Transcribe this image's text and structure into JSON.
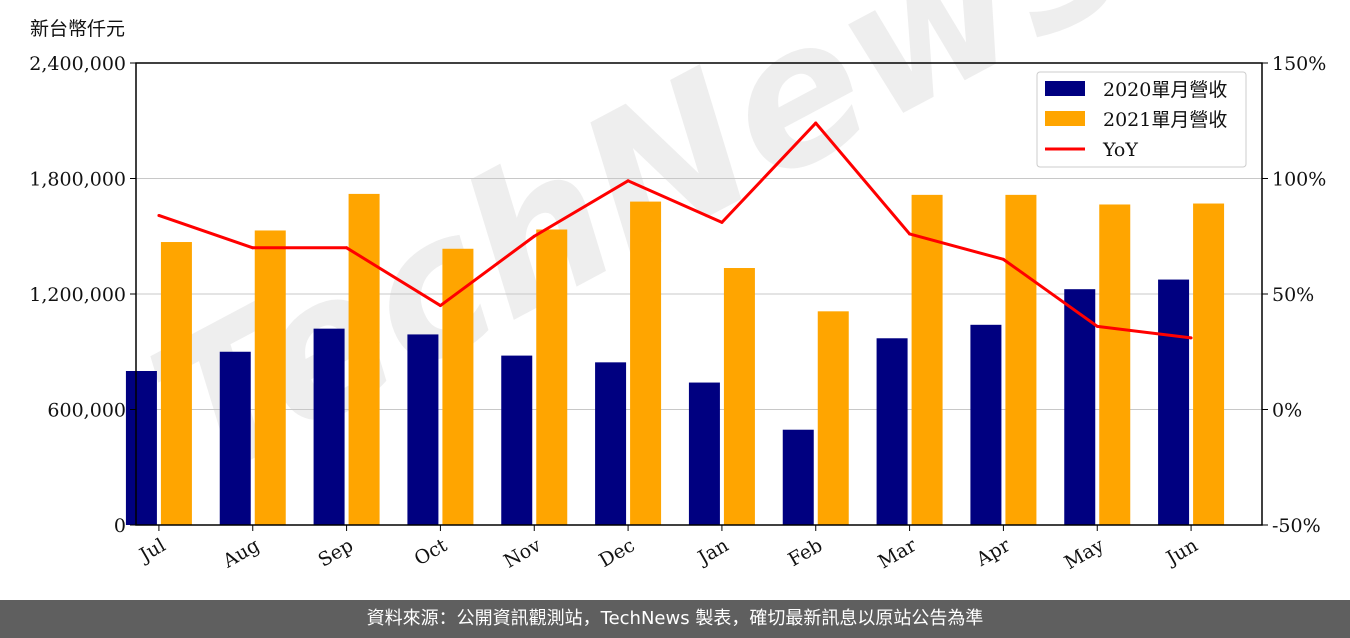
{
  "unit_label": "新台幣仟元",
  "watermark": "TechNews",
  "footer_text": "資料來源：公開資訊觀測站，TechNews 製表，確切最新訊息以原站公告為準",
  "colors": {
    "series_2020": "#000080",
    "series_2021": "#FFA500",
    "yoy": "#FF0000"
  },
  "chart_data": {
    "type": "bar",
    "categories": [
      "Jul",
      "Aug",
      "Sep",
      "Oct",
      "Nov",
      "Dec",
      "Jan",
      "Feb",
      "Mar",
      "Apr",
      "May",
      "Jun"
    ],
    "series": [
      {
        "name": "2020單月營收",
        "values": [
          800000,
          900000,
          1020000,
          990000,
          880000,
          845000,
          740000,
          495000,
          970000,
          1040000,
          1225000,
          1275000
        ]
      },
      {
        "name": "2021單月營收",
        "values": [
          1470000,
          1530000,
          1720000,
          1435000,
          1535000,
          1680000,
          1335000,
          1110000,
          1715000,
          1715000,
          1665000,
          1670000
        ]
      }
    ],
    "line_series": {
      "name": "YoY",
      "axis": "right",
      "values": [
        84,
        70,
        70,
        45,
        75,
        99,
        81,
        124,
        76,
        65,
        36,
        31
      ]
    },
    "yticks_left": [
      "0",
      "600,000",
      "1,200,000",
      "1,800,000",
      "2,400,000"
    ],
    "yticks_right": [
      "-50%",
      "0%",
      "50%",
      "100%",
      "150%"
    ],
    "ylim_left": [
      0,
      2400000
    ],
    "ylim_right": [
      -50,
      150
    ],
    "grid": "horizontal",
    "legend_position": "top-right"
  }
}
